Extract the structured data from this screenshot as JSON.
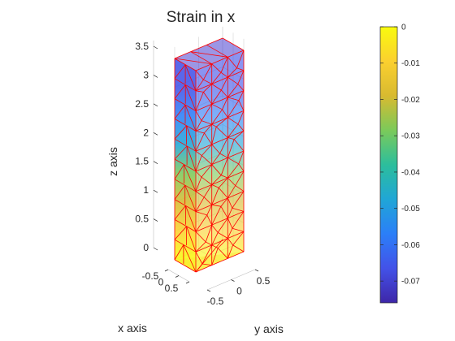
{
  "chart_data": {
    "type": "heatmap",
    "plot_kind": "3d-tetrahedral-mesh",
    "title": "Strain in x",
    "xlabel": "x axis",
    "ylabel": "y axis",
    "zlabel": "z axis",
    "x_ticks": [
      "-0.5",
      "0",
      "0.5"
    ],
    "y_ticks": [
      "-0.5",
      "0",
      "0.5"
    ],
    "z_ticks": [
      "0",
      "0.5",
      "1",
      "1.5",
      "2",
      "2.5",
      "3",
      "3.5"
    ],
    "xlim": [
      -0.5,
      0.5
    ],
    "ylim": [
      -0.5,
      0.5
    ],
    "zlim": [
      0,
      3.5
    ],
    "grid": true,
    "mesh_edge_color": "#ff0000",
    "face_alpha": 0.5,
    "colormap": "parula",
    "colormap_stops": [
      "#3e26a8",
      "#4352e8",
      "#2b7ff8",
      "#20a6d6",
      "#2cbe9c",
      "#7bca5a",
      "#d8ba30",
      "#fbd02f",
      "#f9fb0e"
    ],
    "colorbar": {
      "limits": [
        -0.076,
        0
      ],
      "tick_values": [
        0,
        -0.01,
        -0.02,
        -0.03,
        -0.04,
        -0.05,
        -0.06,
        -0.07
      ],
      "tick_labels": [
        "0",
        "-0.01",
        "-0.02",
        "-0.03",
        "-0.04",
        "-0.05",
        "-0.06",
        "-0.07"
      ],
      "location": "right"
    },
    "strain_by_height": [
      {
        "z": 0,
        "value": -0.002
      },
      {
        "z": 0.5,
        "value": -0.008
      },
      {
        "z": 1,
        "value": -0.02
      },
      {
        "z": 1.5,
        "value": -0.032
      },
      {
        "z": 2,
        "value": -0.043
      },
      {
        "z": 2.5,
        "value": -0.054
      },
      {
        "z": 3,
        "value": -0.063
      },
      {
        "z": 3.5,
        "value": -0.071
      }
    ]
  }
}
